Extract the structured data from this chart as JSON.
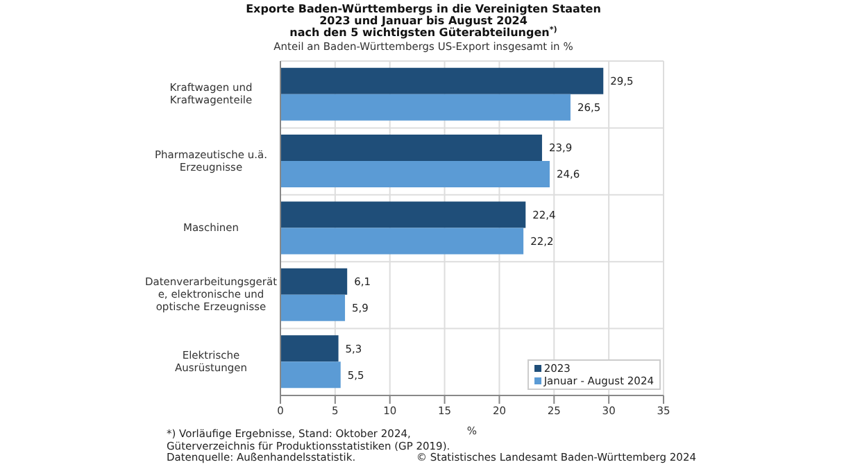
{
  "chart_data": {
    "type": "bar",
    "orientation": "horizontal",
    "title": "Exporte Baden-Württembergs in die Vereinigten Staaten 2023 und Januar bis August 2024 nach den 5 wichtigsten Güterabteilungen$^{*)}$",
    "subtitle": "Anteil an Baden-Württembergs US-Export insgesamt in %",
    "xlabel": "%",
    "categories": [
      "Kraftwagen und Kraftwagenteile",
      "Pharmazeutische u.ä. Erzeugnisse",
      "Maschinen",
      "Datenverarbeitungsgeräte, elektronische und optische Erzeugnisse",
      "Elektrische Ausrüstungen"
    ],
    "series": [
      {
        "name": "2023",
        "color": "#1f4e79",
        "values": [
          29.5,
          23.9,
          22.4,
          6.1,
          5.3
        ],
        "value_labels": [
          "29,5",
          "23,9",
          "22,4",
          "6,1",
          "5,3"
        ]
      },
      {
        "name": "Januar - August 2024",
        "color": "#5b9bd5",
        "values": [
          26.5,
          24.6,
          22.2,
          5.9,
          5.5
        ],
        "value_labels": [
          "26,5",
          "24,6",
          "22,2",
          "5,9",
          "5,5"
        ]
      }
    ],
    "xlim": [
      0,
      35
    ],
    "xticks": [
      0,
      5,
      10,
      15,
      20,
      25,
      30,
      35
    ],
    "grid": true,
    "legend": "bottom right",
    "annotations": [
      "*) Vorläufige Ergebnisse, Stand: Oktober 2024, Güterverzeichnis für Produktionsstatistiken (GP 2019).",
      "Datenquelle: Außenhandelsstatistik.",
      "© Statistisches Landesamt Baden-Württemberg 2024"
    ]
  }
}
